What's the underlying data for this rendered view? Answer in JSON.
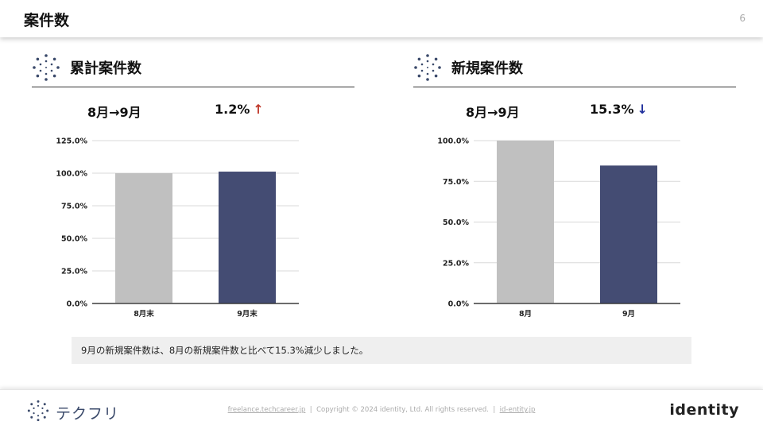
{
  "header": {
    "title": "案件数",
    "page_number": "6"
  },
  "left_section": {
    "title": "累計案件数",
    "period": "8月→9月",
    "change": "1.2%",
    "change_arrow": "↑",
    "arrow_color": "#c0392b"
  },
  "right_section": {
    "title": "新規案件数",
    "period": "8月→9月",
    "change": "15.3%",
    "change_arrow": "↓",
    "arrow_color": "#1f2f9c"
  },
  "chart_data": [
    {
      "type": "bar",
      "categories": [
        "8月末",
        "9月末"
      ],
      "values": [
        100.0,
        101.2
      ],
      "colors": [
        "#c0c0c0",
        "#444c73"
      ],
      "ylim": [
        0,
        125
      ],
      "yticks": [
        0,
        25,
        50,
        75,
        100,
        125
      ],
      "ytick_labels": [
        "0.0%",
        "25.0%",
        "50.0%",
        "75.0%",
        "100.0%",
        "125.0%"
      ],
      "grid": true
    },
    {
      "type": "bar",
      "categories": [
        "8月",
        "9月"
      ],
      "values": [
        100.0,
        84.7
      ],
      "colors": [
        "#c0c0c0",
        "#444c73"
      ],
      "ylim": [
        0,
        100
      ],
      "yticks": [
        0,
        25,
        50,
        75,
        100
      ],
      "ytick_labels": [
        "0.0%",
        "25.0%",
        "50.0%",
        "75.0%",
        "100.0%"
      ],
      "grid": true
    }
  ],
  "note": "9月の新規案件数は、8月の新規案件数と比べて15.3%減少しました。",
  "footer": {
    "brand": "テクフリ",
    "link1": "freelance.techcareer.jp",
    "separator": "|",
    "copyright": "Copyright © 2024 identity, Ltd. All rights reserved.",
    "link2": "id-entity.jp",
    "logo_text": "identity"
  },
  "colors": {
    "accent_dark": "#3b4a6b",
    "bar_gray": "#c0c0c0",
    "bar_navy": "#444c73"
  }
}
